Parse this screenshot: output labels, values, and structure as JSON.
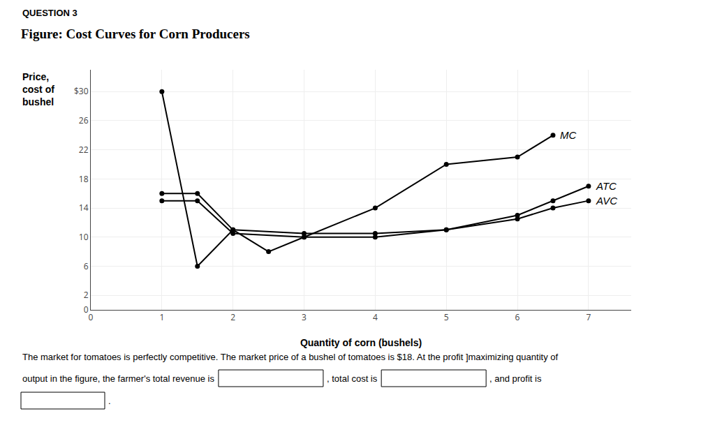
{
  "chart_data": {
    "type": "line",
    "title": "Figure: Cost Curves for Corn Producers",
    "x_label": "Quantity of corn (bushels)",
    "y_label": "Price,\ncost of\nbushel",
    "annotations": [
      "QUESTION 3",
      "The market for tomatoes is perfectly competitive. The market price of a bushel of tomatoes is $18. At the profit ]maximizing quantity of",
      "output in the figure, the farmer's total revenue is",
      ", total cost is",
      ", and profit is",
      "."
    ],
    "series": [
      {
        "name": "MC",
        "color": "#000000",
        "x": [
          1,
          1.5,
          2,
          2.5,
          3,
          4,
          5,
          6,
          6.5
        ],
        "values": [
          30,
          6,
          11,
          8,
          10,
          14,
          20,
          21,
          24
        ]
      },
      {
        "name": "ATC",
        "color": "#000000",
        "x": [
          1,
          1.5,
          2,
          3,
          4,
          5,
          6,
          6.5,
          7
        ],
        "values": [
          16,
          16,
          11,
          10.5,
          10.5,
          11,
          13,
          15,
          17
        ]
      },
      {
        "name": "AVC",
        "color": "#000000",
        "x": [
          1,
          1.5,
          2,
          3,
          4,
          5,
          6,
          6.5,
          7
        ],
        "values": [
          15,
          15,
          10.5,
          10,
          10,
          11,
          12.5,
          14,
          15
        ]
      }
    ],
    "xlim": [
      0,
      7.6
    ],
    "xticks": [
      0,
      1,
      2,
      3,
      4,
      5,
      6,
      7
    ],
    "ylim": [
      0,
      33
    ],
    "yticks": [
      0,
      2,
      6,
      10,
      14,
      18,
      22,
      26,
      {
        "value": 30,
        "label": "$30"
      }
    ],
    "grid": true,
    "marker": "circle"
  }
}
